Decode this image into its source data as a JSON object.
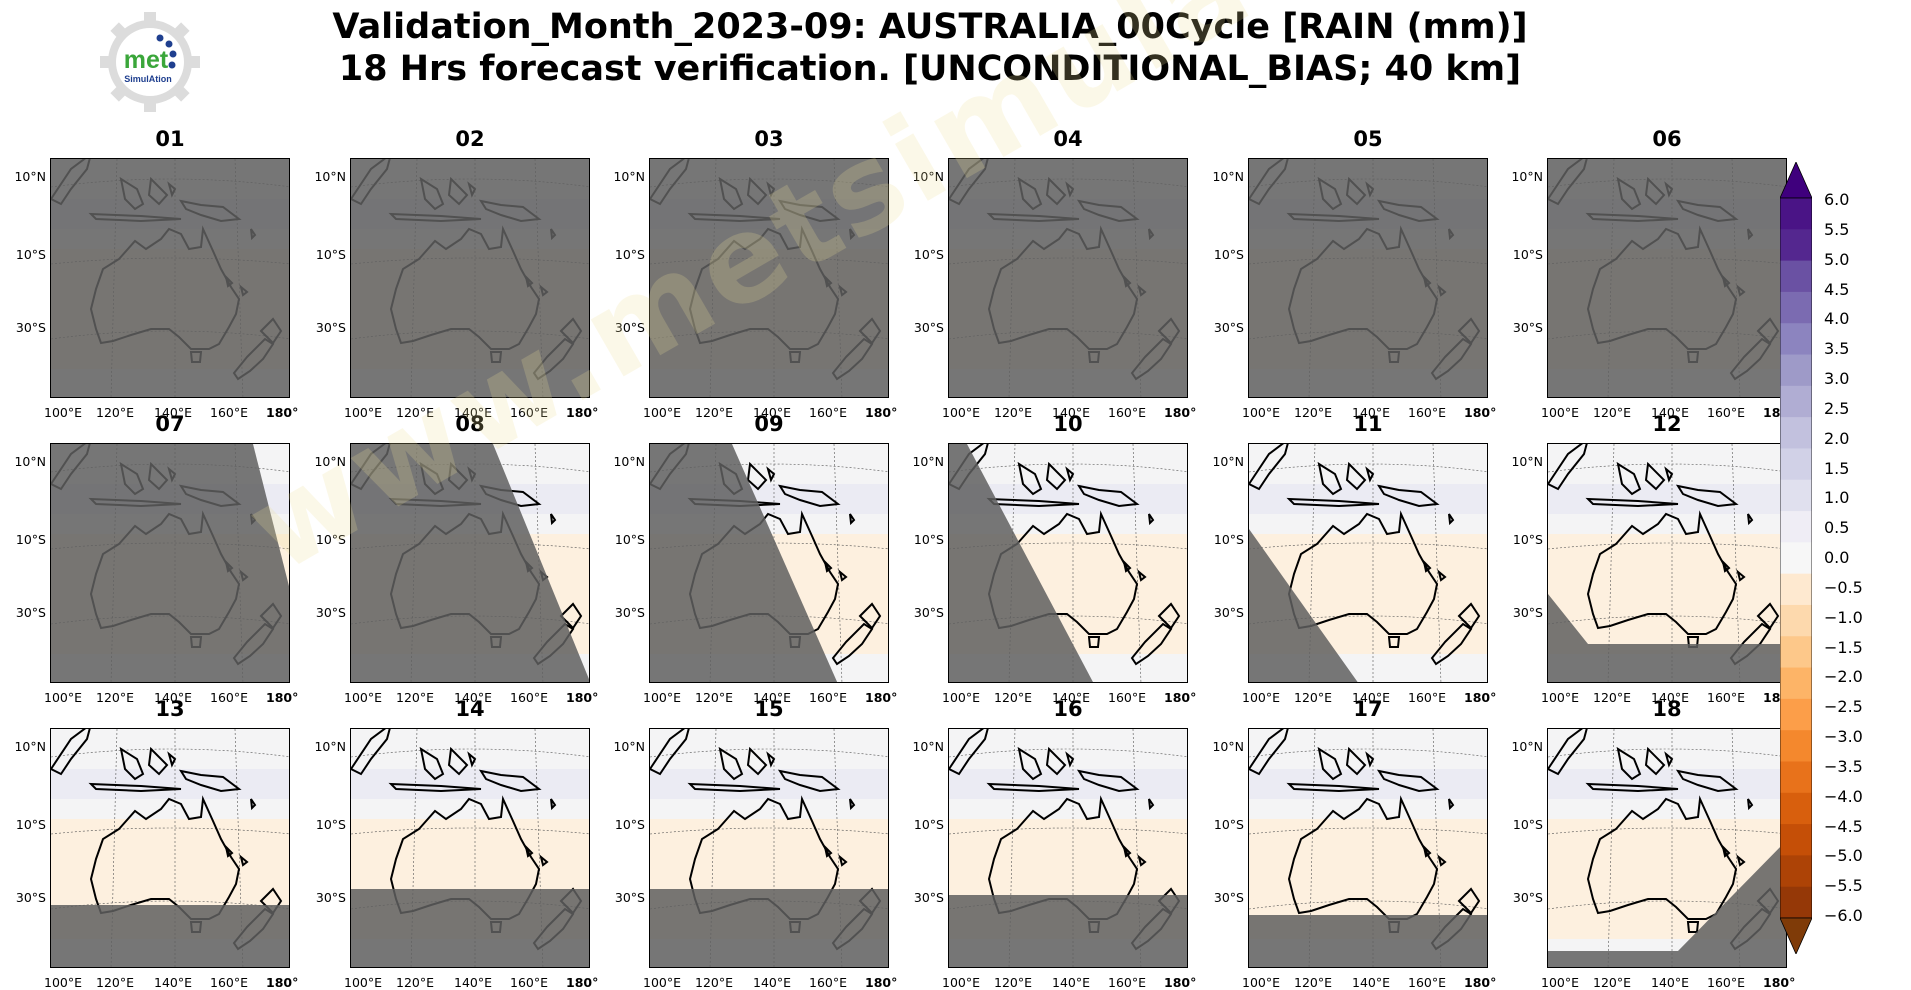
{
  "title": {
    "line1": "Validation_Month_2023-09: AUSTRALIA_00Cycle [RAIN (mm)]",
    "line2": "18 Hrs forecast verification. [UNCONDITIONAL_BIAS; 40 km]"
  },
  "logo": {
    "text": "met",
    "subtext": "SimulAtion"
  },
  "watermark": "www.metsimulation.com",
  "axes": {
    "lat_labels": [
      "10°N",
      "10°S",
      "30°S"
    ],
    "lon_labels": [
      "100°E",
      "120°E",
      "140°E",
      "160°E",
      "180°"
    ]
  },
  "panels": [
    {
      "label": "01",
      "mask": "full"
    },
    {
      "label": "02",
      "mask": "full"
    },
    {
      "label": "03",
      "mask": "full"
    },
    {
      "label": "04",
      "mask": "full"
    },
    {
      "label": "05",
      "mask": "full"
    },
    {
      "label": "06",
      "mask": "full"
    },
    {
      "label": "07",
      "mask": "diag07"
    },
    {
      "label": "08",
      "mask": "diag08"
    },
    {
      "label": "09",
      "mask": "diag09"
    },
    {
      "label": "10",
      "mask": "diag10"
    },
    {
      "label": "11",
      "mask": "diag11"
    },
    {
      "label": "12",
      "mask": "bottom12"
    },
    {
      "label": "13",
      "mask": "bottom13"
    },
    {
      "label": "14",
      "mask": "bottom14"
    },
    {
      "label": "15",
      "mask": "bottom15"
    },
    {
      "label": "16",
      "mask": "bottom16"
    },
    {
      "label": "17",
      "mask": "bottom17"
    },
    {
      "label": "18",
      "mask": "bottom18"
    }
  ],
  "colorbar": {
    "labels": [
      "6.0",
      "5.5",
      "5.0",
      "4.5",
      "4.0",
      "3.5",
      "3.0",
      "2.5",
      "2.0",
      "1.5",
      "1.0",
      "0.5",
      "0.0",
      "−0.5",
      "−1.0",
      "−1.5",
      "−2.0",
      "−2.5",
      "−3.0",
      "−3.5",
      "−4.0",
      "−4.5",
      "−5.0",
      "−5.5",
      "−6.0"
    ],
    "colors": [
      "#3f007d",
      "#4a1486",
      "#54278f",
      "#6a51a3",
      "#7b6bb1",
      "#8c84bf",
      "#9e9ac8",
      "#b0add3",
      "#c2c1de",
      "#d1d1e7",
      "#e0e0ee",
      "#efedf5",
      "#f7f7f7",
      "#fee9d0",
      "#fdd9ad",
      "#fdc88a",
      "#fdb467",
      "#fc9e49",
      "#f4882d",
      "#e8721b",
      "#d85f0d",
      "#c54f07",
      "#ad4306",
      "#953807",
      "#7f3b08"
    ]
  }
}
